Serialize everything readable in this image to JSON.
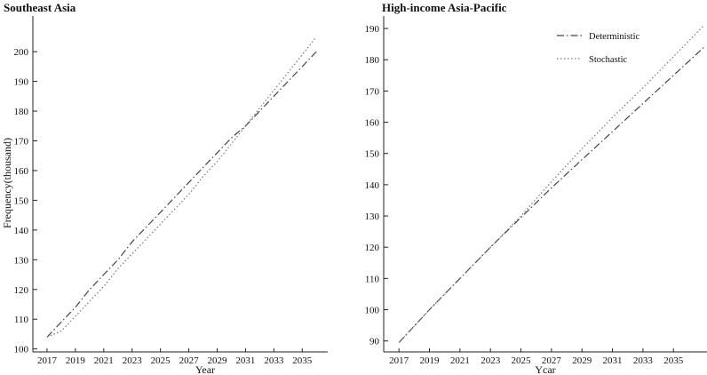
{
  "chart_data": [
    {
      "type": "line",
      "title": "Southeast Asia",
      "xlabel": "Year",
      "ylabel": "Frequency(thousand)",
      "xlim": [
        2016,
        2036.8
      ],
      "ylim": [
        99,
        212
      ],
      "xticks": [
        2017,
        2019,
        2021,
        2023,
        2025,
        2027,
        2029,
        2031,
        2033,
        2035
      ],
      "yticks": [
        100,
        110,
        120,
        130,
        140,
        150,
        160,
        170,
        180,
        190,
        200
      ],
      "legend": null,
      "series": [
        {
          "style": "dash-dot",
          "color": "#444444",
          "x": [
            2017,
            2018,
            2019,
            2020,
            2021,
            2022,
            2023,
            2024,
            2025,
            2026,
            2027,
            2028,
            2029,
            2030,
            2031,
            2032,
            2033,
            2034,
            2035,
            2036
          ],
          "y": [
            104,
            109,
            114,
            120,
            125,
            130,
            136,
            141,
            146,
            151,
            156,
            161,
            166,
            171,
            175,
            180,
            185,
            190,
            195,
            200
          ]
        },
        {
          "style": "dotted",
          "color": "#777777",
          "x": [
            2017,
            2018,
            2019,
            2020,
            2021,
            2022,
            2023,
            2024,
            2025,
            2026,
            2027,
            2028,
            2029,
            2030,
            2031,
            2032,
            2033,
            2034,
            2035,
            2036
          ],
          "y": [
            104,
            106,
            111,
            116,
            121,
            127,
            132,
            137,
            142,
            147,
            152,
            158,
            163,
            169,
            175,
            181,
            187,
            193,
            199,
            205
          ]
        }
      ]
    },
    {
      "type": "line",
      "title": "High-income Asia-Pacific",
      "xlabel": "Ycar",
      "ylabel": "",
      "xlim": [
        2016,
        2037.2
      ],
      "ylim": [
        86.5,
        194
      ],
      "xticks": [
        2017,
        2019,
        2021,
        2023,
        2025,
        2027,
        2029,
        2031,
        2033,
        2035
      ],
      "yticks": [
        90,
        100,
        110,
        120,
        130,
        140,
        150,
        160,
        170,
        180,
        190
      ],
      "legend": {
        "position": "top-right",
        "entries": [
          "Deterministic",
          "Stochastic"
        ]
      },
      "series": [
        {
          "name": "Deterministic",
          "style": "dash-dot",
          "color": "#444444",
          "x": [
            2017,
            2019,
            2021,
            2023,
            2025,
            2027,
            2029,
            2031,
            2033,
            2035,
            2037
          ],
          "y": [
            89.5,
            100,
            110,
            120,
            129.5,
            139,
            148,
            157,
            166,
            175,
            184
          ]
        },
        {
          "name": "Stochastic",
          "style": "dotted",
          "color": "#777777",
          "x": [
            2017,
            2019,
            2021,
            2023,
            2025,
            2027,
            2029,
            2031,
            2033,
            2035,
            2037
          ],
          "y": [
            89.5,
            100,
            110,
            120,
            130,
            141,
            151.5,
            161.5,
            171,
            181,
            191
          ]
        }
      ]
    }
  ]
}
